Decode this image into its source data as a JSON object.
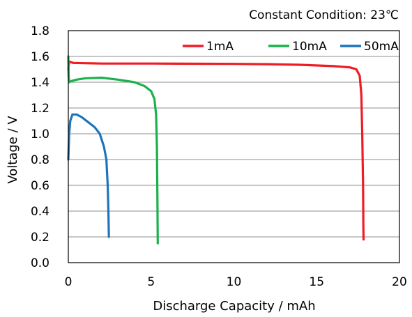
{
  "chart_data": {
    "type": "line",
    "title": "",
    "condition_label": "Constant Condition: 23℃",
    "xlabel": "Discharge Capacity / mAh",
    "ylabel": "Voltage / V",
    "xlim": [
      0,
      20
    ],
    "ylim": [
      0,
      1.8
    ],
    "xticks": [
      "0",
      "5",
      "10",
      "15",
      "20"
    ],
    "yticks": [
      "0.0",
      "0.2",
      "0.4",
      "0.6",
      "0.8",
      "1.0",
      "1.2",
      "1.4",
      "1.6",
      "1.8"
    ],
    "grid": "horizontal",
    "legend_position": "top-right",
    "series": [
      {
        "name": "1mA",
        "color": "#ee1c24",
        "points": [
          [
            0.0,
            1.5
          ],
          [
            0.05,
            1.56
          ],
          [
            0.3,
            1.55
          ],
          [
            2.0,
            1.545
          ],
          [
            5.0,
            1.545
          ],
          [
            8.0,
            1.543
          ],
          [
            10.0,
            1.542
          ],
          [
            12.0,
            1.54
          ],
          [
            14.0,
            1.535
          ],
          [
            16.0,
            1.525
          ],
          [
            17.0,
            1.515
          ],
          [
            17.4,
            1.5
          ],
          [
            17.6,
            1.45
          ],
          [
            17.7,
            1.3
          ],
          [
            17.75,
            1.0
          ],
          [
            17.8,
            0.6
          ],
          [
            17.82,
            0.3
          ],
          [
            17.83,
            0.18
          ]
        ]
      },
      {
        "name": "10mA",
        "color": "#1bb14c",
        "points": [
          [
            0.0,
            1.6
          ],
          [
            0.02,
            1.45
          ],
          [
            0.05,
            1.4
          ],
          [
            0.2,
            1.41
          ],
          [
            0.5,
            1.42
          ],
          [
            1.0,
            1.43
          ],
          [
            2.0,
            1.435
          ],
          [
            3.0,
            1.42
          ],
          [
            4.0,
            1.4
          ],
          [
            4.6,
            1.37
          ],
          [
            5.0,
            1.33
          ],
          [
            5.2,
            1.27
          ],
          [
            5.3,
            1.15
          ],
          [
            5.35,
            0.9
          ],
          [
            5.38,
            0.5
          ],
          [
            5.4,
            0.15
          ]
        ]
      },
      {
        "name": "50mA",
        "color": "#1c75bc",
        "points": [
          [
            0.0,
            0.8
          ],
          [
            0.05,
            1.0
          ],
          [
            0.12,
            1.1
          ],
          [
            0.25,
            1.15
          ],
          [
            0.5,
            1.15
          ],
          [
            0.8,
            1.13
          ],
          [
            1.2,
            1.09
          ],
          [
            1.6,
            1.05
          ],
          [
            1.9,
            1.0
          ],
          [
            2.15,
            0.9
          ],
          [
            2.3,
            0.8
          ],
          [
            2.38,
            0.6
          ],
          [
            2.42,
            0.4
          ],
          [
            2.45,
            0.2
          ]
        ]
      }
    ]
  }
}
